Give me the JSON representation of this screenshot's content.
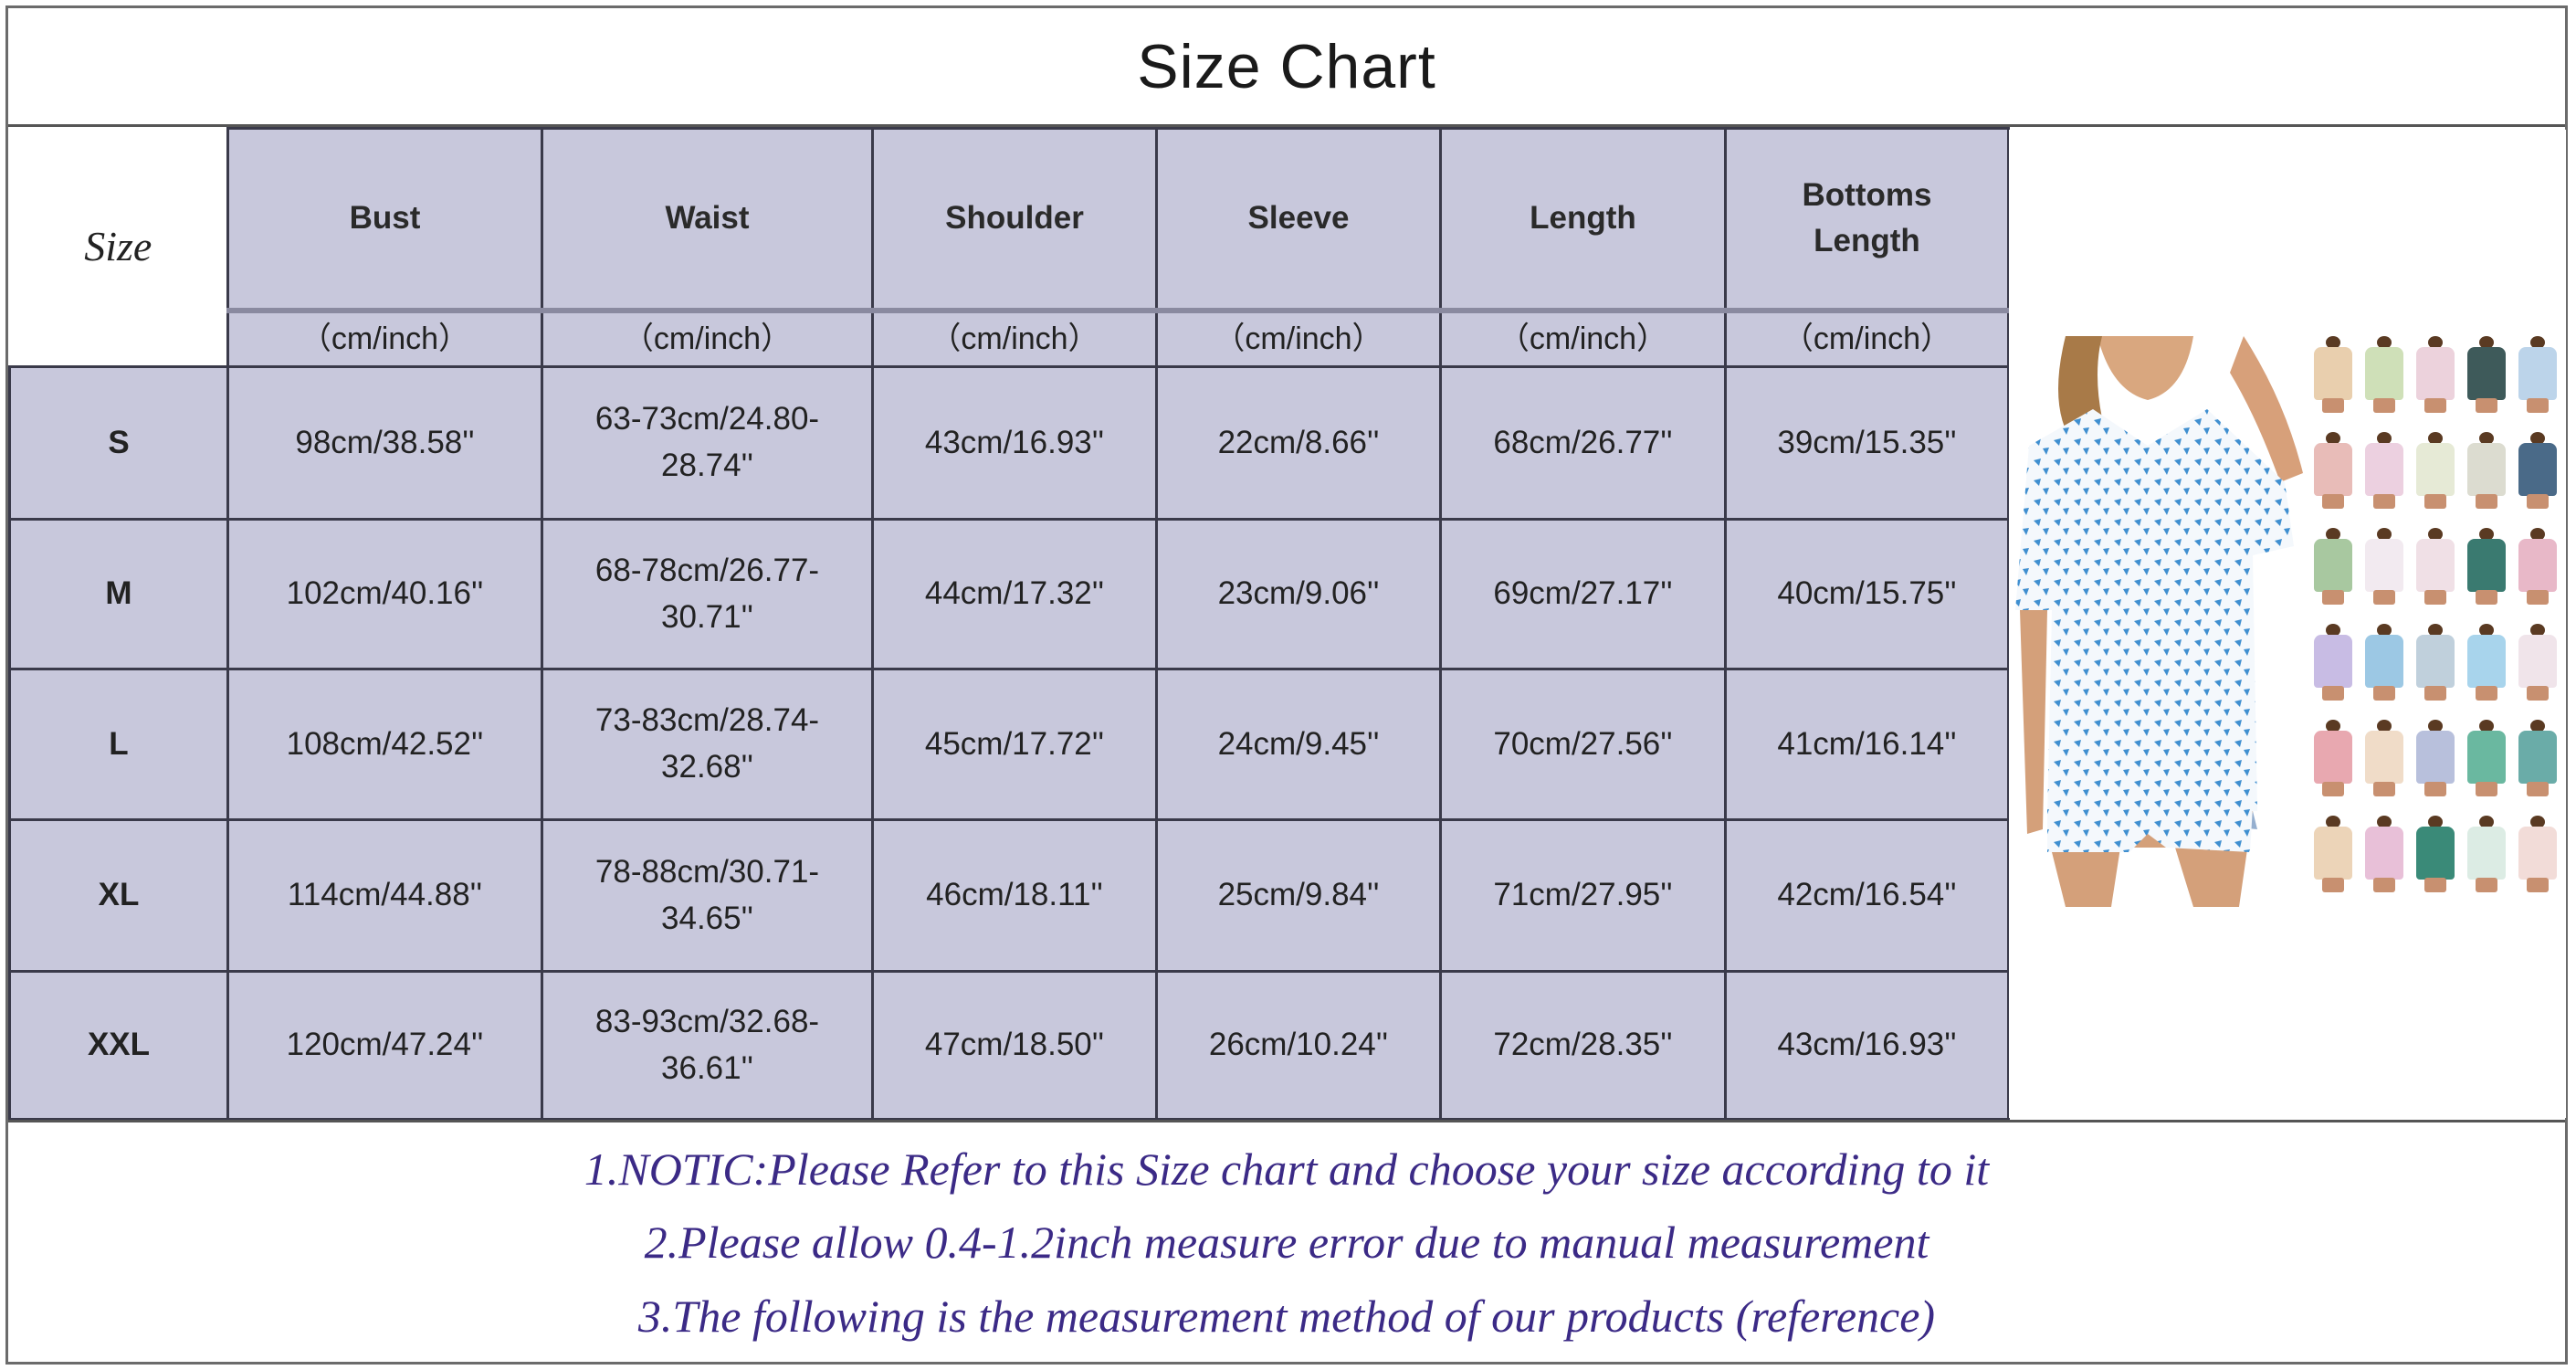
{
  "title": "Size Chart",
  "table": {
    "size_label": "Size",
    "columns": [
      "Bust",
      "Waist",
      "Shoulder",
      "Sleeve",
      "Length",
      "Bottoms Length"
    ],
    "unit": "（cm/inch）",
    "rows": [
      {
        "size": "S",
        "values": [
          "98cm/38.58''",
          "63-73cm/24.80-28.74''",
          "43cm/16.93''",
          "22cm/8.66''",
          "68cm/26.77''",
          "39cm/15.35''"
        ]
      },
      {
        "size": "M",
        "values": [
          "102cm/40.16''",
          "68-78cm/26.77-30.71''",
          "44cm/17.32''",
          "23cm/9.06''",
          "69cm/27.17''",
          "40cm/15.75''"
        ]
      },
      {
        "size": "L",
        "values": [
          "108cm/42.52''",
          "73-83cm/28.74-32.68''",
          "45cm/17.72''",
          "24cm/9.45''",
          "70cm/27.56''",
          "41cm/16.14''"
        ]
      },
      {
        "size": "XL",
        "values": [
          "114cm/44.88''",
          "78-88cm/30.71-34.65''",
          "46cm/18.11''",
          "25cm/9.84''",
          "71cm/27.95''",
          "42cm/16.54''"
        ]
      },
      {
        "size": "XXL",
        "values": [
          "120cm/47.24''",
          "83-93cm/32.68-36.61''",
          "47cm/18.50''",
          "26cm/10.24''",
          "72cm/28.35''",
          "43cm/16.93''"
        ]
      }
    ]
  },
  "colors": {
    "table_bg": "#c8c8dc",
    "notes_text": "#3b2a86",
    "pattern_blue": "#3f8fd0"
  },
  "swatches": [
    "#e9cfae",
    "#cfe0b8",
    "#ecd2dc",
    "#3e5a5a",
    "#bcd4ea",
    "#e8bcb8",
    "#ecd0e0",
    "#e6ead6",
    "#dcdcd0",
    "#4a6a88",
    "#a8c8a0",
    "#f2eaf0",
    "#f0e0e6",
    "#3a7a70",
    "#e8b8c8",
    "#c8bce4",
    "#9cc8e4",
    "#c0d0dc",
    "#a8d4ec",
    "#f0e4ea",
    "#e8a8b0",
    "#f0dcc8",
    "#b8c0dc",
    "#6ab8a0",
    "#6aaca8",
    "#ecd4b8",
    "#e8c0d8",
    "#3a8a78",
    "#dcece4",
    "#f2dcd8"
  ],
  "notes": [
    "1.NOTIC:Please Refer to this Size chart and choose your size according to it",
    "2.Please allow 0.4-1.2inch measure error due to manual measurement",
    "3.The following is the measurement method of our products (reference)"
  ]
}
